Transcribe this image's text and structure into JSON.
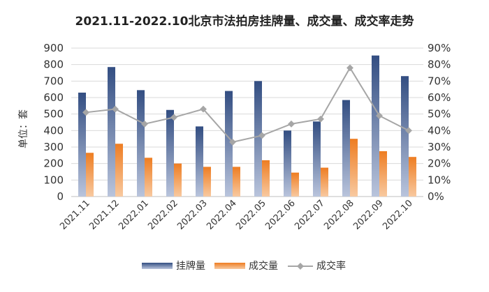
{
  "chart_data": {
    "type": "bar",
    "title": "2021.11-2022.10北京市法拍房挂牌量、成交量、成交率走势",
    "ylabel": "单位：套",
    "categories": [
      "2021.11",
      "2021.12",
      "2022.01",
      "2022.02",
      "2022.03",
      "2022.04",
      "2022.05",
      "2022.06",
      "2022.07",
      "2022.08",
      "2022.09",
      "2022.10"
    ],
    "series": [
      {
        "name": "挂牌量",
        "type": "bar",
        "axis": "left",
        "values": [
          630,
          785,
          645,
          525,
          425,
          640,
          700,
          400,
          455,
          585,
          855,
          730
        ]
      },
      {
        "name": "成交量",
        "type": "bar",
        "axis": "left",
        "values": [
          265,
          320,
          235,
          200,
          180,
          180,
          220,
          145,
          175,
          350,
          275,
          240
        ]
      },
      {
        "name": "成交率",
        "type": "line",
        "axis": "right",
        "values": [
          51,
          53,
          44,
          48,
          53,
          33,
          37,
          44,
          47,
          78,
          49,
          40
        ]
      }
    ],
    "ylim": [
      0,
      900
    ],
    "y_ticks": [
      0,
      100,
      200,
      300,
      400,
      500,
      600,
      700,
      800,
      900
    ],
    "y2lim": [
      0,
      90
    ],
    "y2_ticks": [
      "0%",
      "10%",
      "20%",
      "30%",
      "40%",
      "50%",
      "60%",
      "70%",
      "80%",
      "90%"
    ],
    "grid": true,
    "legend_position": "bottom",
    "colors": {
      "挂牌量": "#4a6396",
      "成交量": "#f0913a",
      "成交率": "#a6a6a6"
    }
  }
}
